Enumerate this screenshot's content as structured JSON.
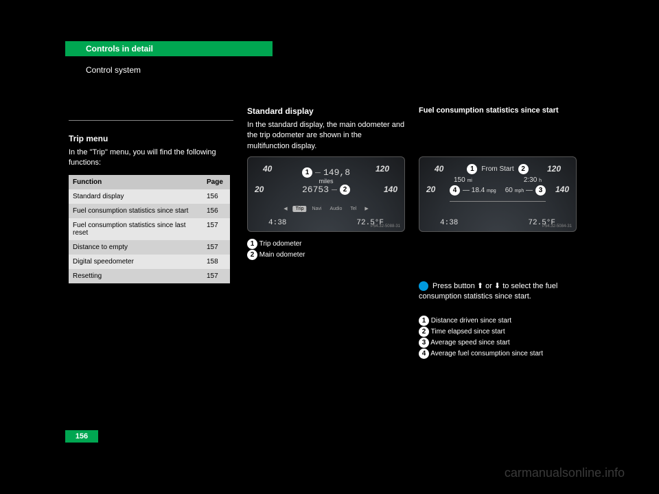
{
  "header": {
    "title": "Controls in detail",
    "subtitle": "Control system"
  },
  "page_number": "156",
  "watermark": "carmanualsonline.info",
  "col1": {
    "section": "Trip menu",
    "intro": "In the \"Trip\" menu, you will find the following functions:",
    "table": {
      "cols": [
        "Function",
        "Page"
      ],
      "rows": [
        [
          "Standard display",
          "156"
        ],
        [
          "Fuel consumption statistics since start",
          "156"
        ],
        [
          "Fuel consumption statistics since last reset",
          "157"
        ],
        [
          "Distance to empty",
          "157"
        ],
        [
          "Digital speedometer",
          "158"
        ],
        [
          "Resetting",
          "157"
        ]
      ]
    }
  },
  "col2": {
    "section": "Standard display",
    "intro": "In the standard display, the main odometer and the trip odometer are shown in the multifunction display.",
    "gauge": {
      "ticks": {
        "t20": "20",
        "t40": "40",
        "t120": "120",
        "t140": "140"
      },
      "line1": "149,8",
      "line1_unit": "miles",
      "line2": "26753",
      "nav": [
        "◀",
        "Trip",
        "Navi",
        "Audio",
        "Tel",
        "▶"
      ],
      "bottom_left": "4:38",
      "bottom_right": "72.5°F",
      "pcode": "P54.32-5088-31"
    },
    "legend": [
      {
        "n": "1",
        "text": "Trip odometer"
      },
      {
        "n": "2",
        "text": "Main odometer"
      }
    ]
  },
  "col3": {
    "section": "Fuel consumption statistics since start",
    "gauge": {
      "ticks": {
        "t20": "20",
        "t40": "40",
        "t120": "120",
        "t140": "140"
      },
      "title": "From Start",
      "r1l": "150",
      "r1l_u": "mi",
      "r1r": "2:30",
      "r1r_u": "h",
      "r2l": "18.4",
      "r2l_u": "mpg",
      "r2r": "60",
      "r2r_u": "mph",
      "bottom_left": "4:38",
      "bottom_right": "72.5°F",
      "pcode": "P54.32-5084-31"
    },
    "steps": [
      "Press button ⬆ or ⬇ to select the fuel consumption statistics since start."
    ],
    "legend": [
      {
        "n": "1",
        "text": "Distance driven since start"
      },
      {
        "n": "2",
        "text": "Time elapsed since start"
      },
      {
        "n": "3",
        "text": "Average speed since start"
      },
      {
        "n": "4",
        "text": "Average fuel consumption since start"
      }
    ]
  }
}
